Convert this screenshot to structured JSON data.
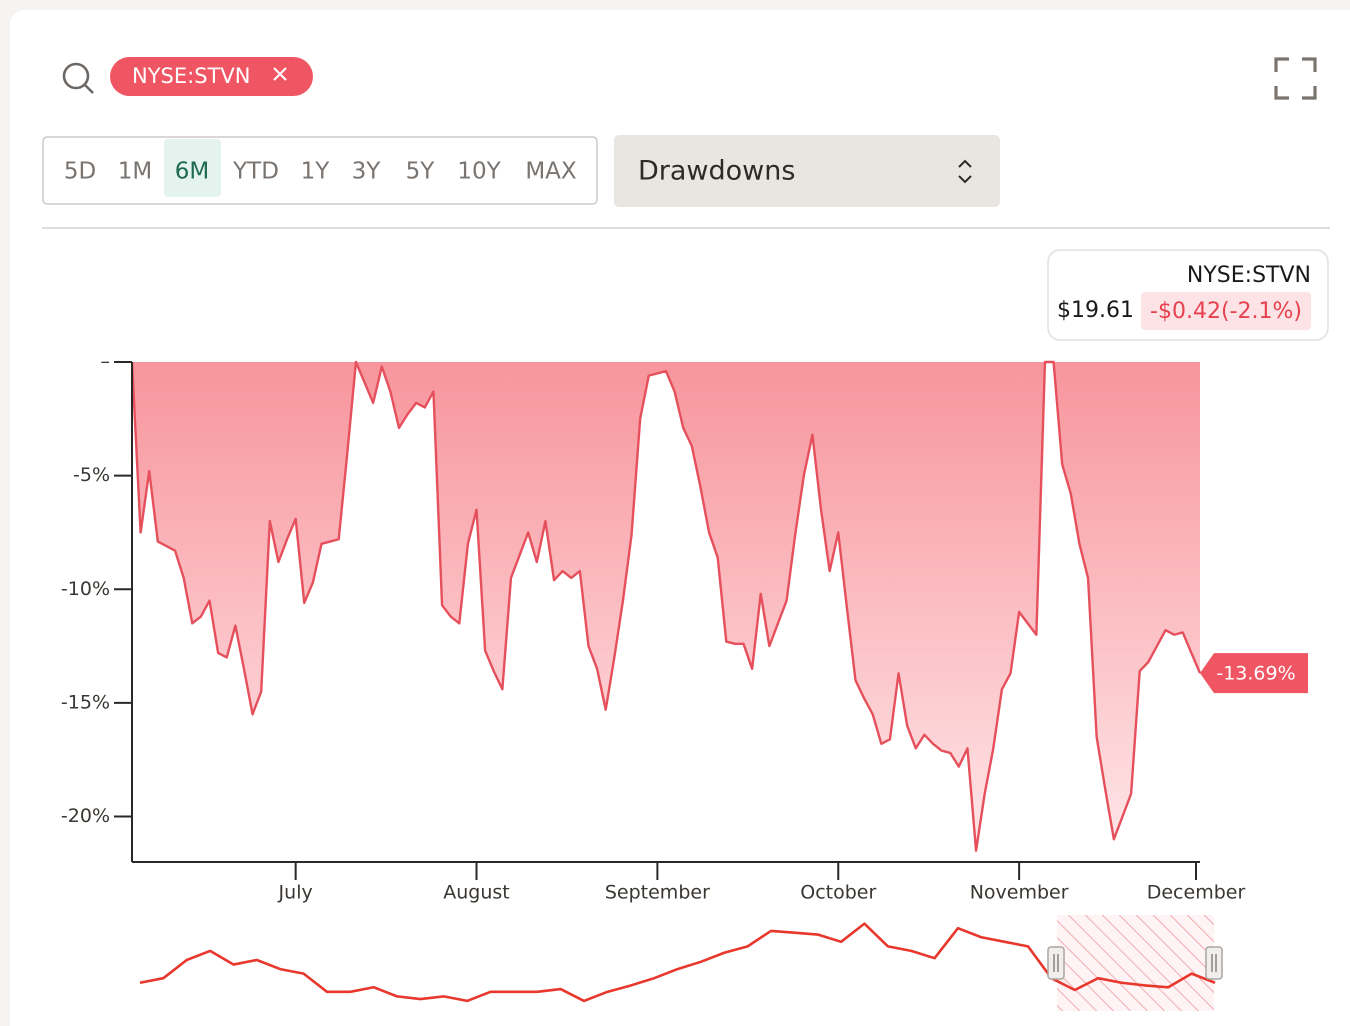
{
  "search": {
    "tag": "NYSE:STVN"
  },
  "range_buttons": {
    "options": [
      "5D",
      "1M",
      "6M",
      "YTD",
      "1Y",
      "3Y",
      "5Y",
      "10Y",
      "MAX"
    ],
    "selected": 2
  },
  "metric_select": "Drawdowns",
  "tooltip": {
    "symbol": "NYSE:STVN",
    "price": "$19.61",
    "change": "-$0.42(-2.1%)"
  },
  "chart_data": {
    "type": "area",
    "color": "#e5505c",
    "fill_colors": [
      "#f7959c",
      "#ffe6e8"
    ],
    "label_color": "#ef5562",
    "categories": [
      null,
      null,
      null,
      null,
      null,
      null,
      null,
      null,
      null,
      null,
      null,
      null,
      null,
      null,
      null,
      null,
      null,
      null,
      null,
      "July",
      null,
      null,
      null,
      null,
      null,
      null,
      null,
      null,
      null,
      null,
      null,
      null,
      null,
      null,
      null,
      null,
      null,
      null,
      null,
      null,
      "August",
      null,
      null,
      null,
      null,
      null,
      null,
      null,
      null,
      null,
      null,
      null,
      null,
      null,
      null,
      null,
      null,
      null,
      null,
      null,
      null,
      "September",
      null,
      null,
      null,
      null,
      null,
      null,
      null,
      null,
      null,
      null,
      null,
      null,
      null,
      null,
      null,
      null,
      null,
      null,
      null,
      null,
      "October",
      null,
      null,
      null,
      null,
      null,
      null,
      null,
      null,
      null,
      null,
      null,
      null,
      null,
      null,
      null,
      null,
      null,
      null,
      null,
      null,
      "November",
      null,
      null,
      null,
      null,
      null,
      null,
      null,
      null,
      null,
      null,
      null,
      null,
      null,
      null,
      null,
      null,
      null,
      null,
      null,
      null,
      "December"
    ],
    "values": [
      0,
      -7.5,
      -4.8,
      -7.9,
      -8.1,
      -8.3,
      -9.5,
      -11.5,
      -11.2,
      -10.5,
      -12.8,
      -13,
      -11.6,
      -13.5,
      -15.5,
      -14.5,
      -7,
      -8.8,
      -7.8,
      -6.9,
      -10.6,
      -9.7,
      -8,
      -7.9,
      -7.8,
      -4,
      0,
      -0.9,
      -1.8,
      -0.2,
      -1.3,
      -2.9,
      -2.3,
      -1.8,
      -2,
      -1.3,
      -10.7,
      -11.2,
      -11.5,
      -8,
      -6.5,
      -12.7,
      -13.6,
      -14.4,
      -9.5,
      -8.5,
      -7.5,
      -8.8,
      -7,
      -9.6,
      -9.2,
      -9.5,
      -9.2,
      -12.5,
      -13.5,
      -15.3,
      -13,
      -10.5,
      -7.6,
      -2.5,
      -0.6,
      -0.5,
      -0.4,
      -1.3,
      -2.9,
      -3.7,
      -5.5,
      -7.5,
      -8.6,
      -12.3,
      -12.4,
      -12.4,
      -13.5,
      -10.2,
      -12.5,
      -11.5,
      -10.5,
      -7.6,
      -5,
      -3.2,
      -6.5,
      -9.2,
      -7.5,
      -10.8,
      -14,
      -14.8,
      -15.5,
      -16.8,
      -16.6,
      -13.7,
      -16,
      -17,
      -16.4,
      -16.8,
      -17.1,
      -17.2,
      -17.8,
      -17,
      -21.5,
      -19,
      -17,
      -14.4,
      -13.7,
      -11,
      -11.5,
      -12,
      0,
      0,
      -4.5,
      -5.8,
      -8,
      -9.5,
      -16.5,
      -18.8,
      -21,
      -20,
      -19,
      -13.6,
      -13.2,
      -12.5,
      -11.8,
      -12,
      -11.9,
      -12.8,
      -13.69
    ],
    "value_labels": [
      null,
      null,
      null,
      null,
      null,
      null,
      null,
      null,
      null,
      null,
      null,
      null,
      null,
      null,
      null,
      null,
      null,
      null,
      null,
      null,
      null,
      null,
      null,
      null,
      null,
      null,
      null,
      null,
      null,
      null,
      null,
      null,
      null,
      null,
      null,
      null,
      null,
      null,
      null,
      null,
      null,
      null,
      null,
      null,
      null,
      null,
      null,
      null,
      null,
      null,
      null,
      null,
      null,
      null,
      null,
      null,
      null,
      null,
      null,
      null,
      null,
      null,
      null,
      null,
      null,
      null,
      null,
      null,
      null,
      null,
      null,
      null,
      null,
      null,
      null,
      null,
      null,
      null,
      null,
      null,
      null,
      null,
      null,
      null,
      null,
      null,
      null,
      null,
      null,
      null,
      null,
      null,
      null,
      null,
      null,
      null,
      null,
      null,
      null,
      null,
      null,
      null,
      null,
      null,
      null,
      null,
      null,
      null,
      null,
      null,
      null,
      null,
      null,
      null,
      null,
      null,
      null,
      null,
      null,
      null,
      null,
      null,
      null,
      null,
      "-13.69%"
    ],
    "ylim": [
      -22,
      0
    ],
    "yticks": [
      {
        "value": 0,
        "label": "–"
      },
      {
        "value": -5,
        "label": "-5%"
      },
      {
        "value": -10,
        "label": "-10%"
      },
      {
        "value": -15,
        "label": "-15%"
      },
      {
        "value": -20,
        "label": "-20%"
      }
    ],
    "grid": false
  },
  "navigator": {
    "type": "line",
    "color": "#e8372c",
    "values": [
      19.61,
      19.86,
      20.86,
      21.36,
      20.61,
      20.86,
      20.36,
      20.11,
      19.11,
      19.11,
      19.36,
      18.86,
      18.71,
      18.86,
      18.61,
      19.11,
      19.11,
      19.11,
      19.26,
      18.61,
      19.11,
      19.46,
      19.86,
      20.36,
      20.76,
      21.26,
      21.61,
      22.46,
      22.36,
      22.26,
      21.86,
      22.86,
      21.61,
      21.36,
      20.96,
      22.61,
      22.11,
      21.86,
      21.61,
      19.86,
      19.21,
      19.86,
      19.61,
      19.46,
      19.36,
      20.11,
      19.61
    ],
    "ylim": [
      18,
      23.5
    ]
  }
}
